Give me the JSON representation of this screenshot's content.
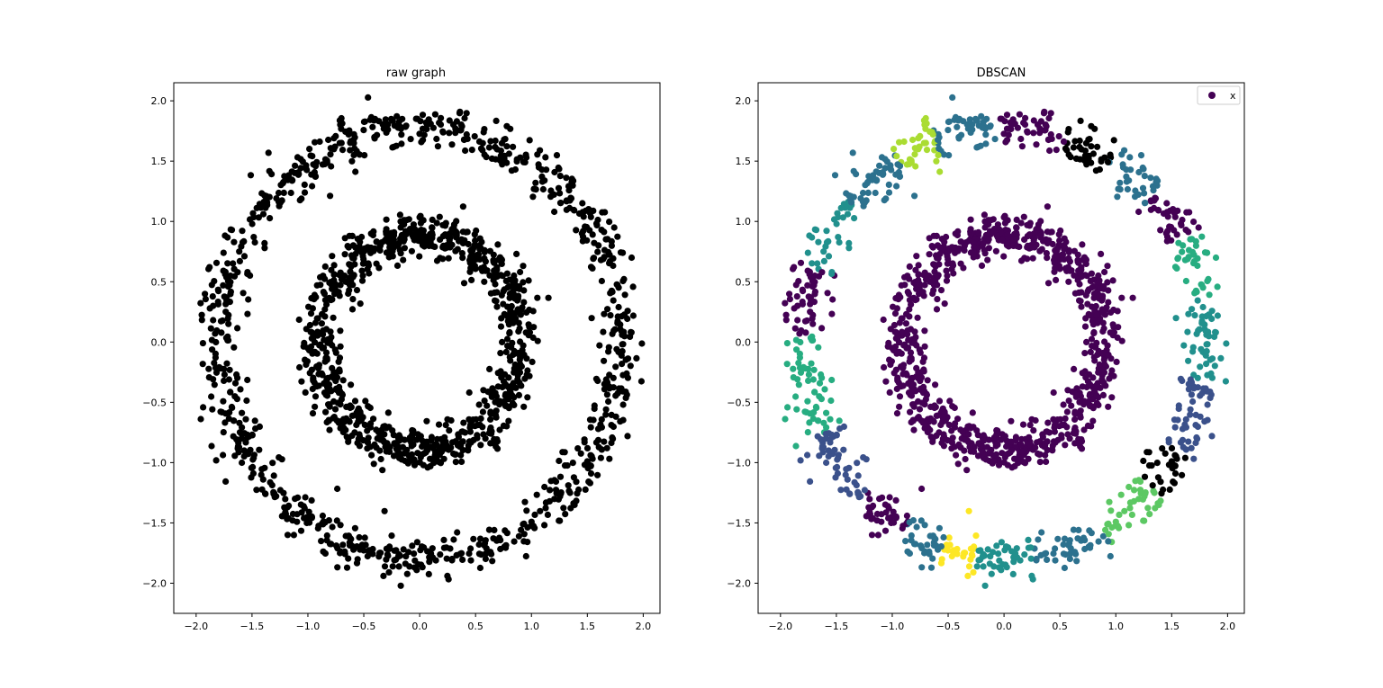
{
  "chart_data": [
    {
      "type": "scatter",
      "title": "raw graph",
      "xlabel": "",
      "ylabel": "",
      "xlim": [
        -2.2,
        2.15
      ],
      "ylim": [
        -2.25,
        2.15
      ],
      "xticks": [
        -2.0,
        -1.5,
        -1.0,
        -0.5,
        0.0,
        0.5,
        1.0,
        1.5,
        2.0
      ],
      "yticks": [
        -2.0,
        -1.5,
        -1.0,
        -0.5,
        0.0,
        0.5,
        1.0,
        1.5,
        2.0
      ],
      "tick_labels_x": [
        "−2.0",
        "−1.5",
        "−1.0",
        "−0.5",
        "0.0",
        "0.5",
        "1.0",
        "1.5",
        "2.0"
      ],
      "tick_labels_y": [
        "−2.0",
        "−1.5",
        "−1.0",
        "−0.5",
        "0.0",
        "0.5",
        "1.0",
        "1.5",
        "2.0"
      ],
      "color": "#000000",
      "series": [
        {
          "description": "two concentric noisy rings",
          "rings": [
            {
              "radius": 1.8,
              "noise": 0.09,
              "points": 900
            },
            {
              "radius": 0.9,
              "noise": 0.09,
              "points": 900
            }
          ]
        }
      ],
      "grid": false
    },
    {
      "type": "scatter",
      "title": "DBSCAN",
      "xlabel": "",
      "ylabel": "",
      "xlim": [
        -2.2,
        2.15
      ],
      "ylim": [
        -2.25,
        2.15
      ],
      "xticks": [
        -2.0,
        -1.5,
        -1.0,
        -0.5,
        0.0,
        0.5,
        1.0,
        1.5,
        2.0
      ],
      "yticks": [
        -2.0,
        -1.5,
        -1.0,
        -0.5,
        0.0,
        0.5,
        1.0,
        1.5,
        2.0
      ],
      "tick_labels_x": [
        "−2.0",
        "−1.5",
        "−1.0",
        "−0.5",
        "0.0",
        "0.5",
        "1.0",
        "1.5",
        "2.0"
      ],
      "tick_labels_y": [
        "−2.0",
        "−1.5",
        "−1.0",
        "−0.5",
        "0.0",
        "0.5",
        "1.0",
        "1.5",
        "2.0"
      ],
      "legend": {
        "position": "top-right",
        "entries": [
          {
            "label": "x",
            "color": "#440154"
          }
        ]
      },
      "cluster_colors": [
        "#440154",
        "#472c7a",
        "#3b518b",
        "#2c718e",
        "#21908d",
        "#27ad81",
        "#5cc863",
        "#aadc32",
        "#fde725"
      ],
      "clusters": [
        {
          "name": "inner ring",
          "color": "#440154",
          "radius": 0.9
        },
        {
          "name": "outer ring arcs",
          "color_cycle": [
            "#440154",
            "#3b518b",
            "#2c718e",
            "#21908d",
            "#27ad81",
            "#5cc863",
            "#aadc32",
            "#fde725"
          ],
          "radius": 1.8
        }
      ],
      "grid": false
    }
  ]
}
